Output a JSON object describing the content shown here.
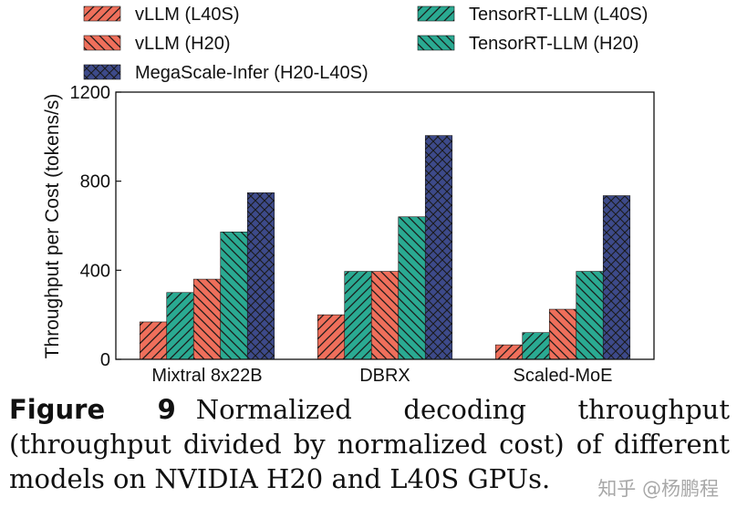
{
  "chart_data": {
    "type": "bar",
    "categories": [
      "Mixtral 8x22B",
      "DBRX",
      "Scaled-MoE"
    ],
    "ylabel": "Throughput per Cost (tokens/s)",
    "xlabel": "",
    "ylim": [
      0,
      1200
    ],
    "yticks": [
      0,
      400,
      800,
      1200
    ],
    "grid": false,
    "legend_position": "top",
    "series": [
      {
        "name": "vLLM (L40S)",
        "color": "#ef6f5b",
        "hatch": "forward",
        "values": [
          168,
          200,
          65
        ]
      },
      {
        "name": "TensorRT-LLM (L40S)",
        "color": "#2aaa92",
        "hatch": "forward",
        "values": [
          300,
          395,
          120
        ]
      },
      {
        "name": "vLLM (H20)",
        "color": "#ef6f5b",
        "hatch": "backward",
        "values": [
          360,
          395,
          225
        ]
      },
      {
        "name": "TensorRT-LLM (H20)",
        "color": "#2aaa92",
        "hatch": "backward",
        "values": [
          572,
          640,
          395
        ]
      },
      {
        "name": "MegaScale-Infer (H20-L40S)",
        "color": "#3d4a8a",
        "hatch": "cross",
        "values": [
          748,
          1005,
          735
        ]
      }
    ],
    "legend_order": [
      0,
      2,
      4,
      1,
      3
    ]
  },
  "caption": {
    "label": "Figure 9",
    "text": "Normalized decoding throughput (throughput divided by normalized cost) of different models on NVIDIA H20 and L40S GPUs."
  },
  "watermark": "知乎 @杨鹏程"
}
